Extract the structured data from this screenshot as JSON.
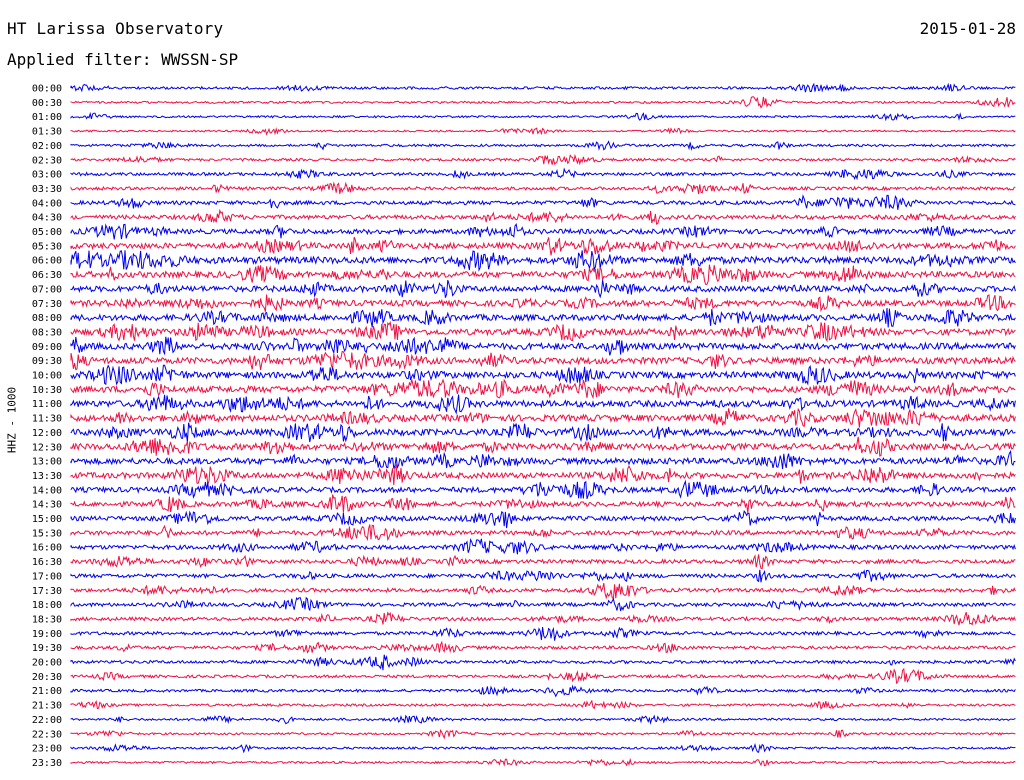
{
  "header": {
    "station": "HT Larissa Observatory",
    "date": "2015-01-28",
    "filter": "Applied filter: WWSSN-SP"
  },
  "colors": {
    "trace_a": "#0000ee",
    "trace_b": "#ee1144"
  },
  "chart_data": {
    "type": "line",
    "ylabel": "HHZ - 1000",
    "rows": [
      "00:00",
      "00:30",
      "01:00",
      "01:30",
      "02:00",
      "02:30",
      "03:00",
      "03:30",
      "04:00",
      "04:30",
      "05:00",
      "05:30",
      "06:00",
      "06:30",
      "07:00",
      "07:30",
      "08:00",
      "08:30",
      "09:00",
      "09:30",
      "10:00",
      "10:30",
      "11:00",
      "11:30",
      "12:00",
      "12:30",
      "13:00",
      "13:30",
      "14:00",
      "14:30",
      "15:00",
      "15:30",
      "16:00",
      "16:30",
      "17:00",
      "17:30",
      "18:00",
      "18:30",
      "19:00",
      "19:30",
      "20:00",
      "20:30",
      "21:00",
      "21:30",
      "22:00",
      "22:30",
      "23:00",
      "23:30"
    ],
    "activity": [
      0.2,
      0.14,
      0.12,
      0.08,
      0.18,
      0.2,
      0.28,
      0.3,
      0.4,
      0.45,
      0.55,
      0.7,
      0.85,
      0.75,
      0.7,
      0.72,
      0.74,
      0.76,
      0.78,
      0.8,
      0.8,
      0.8,
      0.8,
      0.82,
      0.8,
      0.78,
      0.76,
      0.7,
      0.6,
      0.55,
      0.5,
      0.48,
      0.45,
      0.42,
      0.4,
      0.38,
      0.36,
      0.35,
      0.32,
      0.3,
      0.28,
      0.25,
      0.22,
      0.18,
      0.15,
      0.14,
      0.14,
      0.14
    ]
  }
}
